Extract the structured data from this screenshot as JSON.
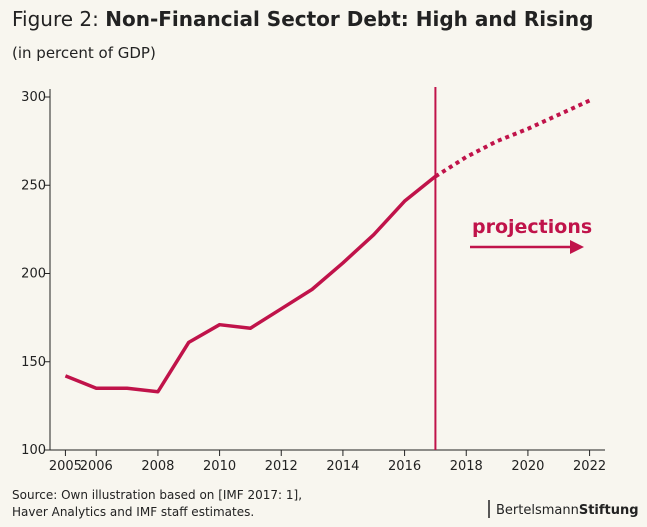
{
  "chart_data": {
    "type": "line",
    "title_prefix": "Figure 2:",
    "title": "Non-Financial Sector Debt: High and Rising",
    "subtitle": "(in percent of GDP)",
    "x": [
      2005,
      2006,
      2007,
      2008,
      2009,
      2010,
      2011,
      2012,
      2013,
      2014,
      2015,
      2016,
      2017,
      2018,
      2019,
      2020,
      2021,
      2022
    ],
    "series": [
      {
        "color": "#c0134a",
        "style": "solid",
        "values": [
          142,
          135,
          135,
          133,
          161,
          171,
          169,
          180,
          191,
          206,
          222,
          241,
          255,
          null,
          null,
          null,
          null,
          null
        ]
      },
      {
        "color": "#c0134a",
        "style": "dotted",
        "values": [
          null,
          null,
          null,
          null,
          null,
          null,
          null,
          null,
          null,
          null,
          null,
          null,
          255,
          266,
          275,
          282,
          290,
          298
        ]
      }
    ],
    "xlim": [
      2004.5,
      2022.5
    ],
    "xticks": [
      2005,
      2006,
      2008,
      2010,
      2012,
      2014,
      2016,
      2018,
      2020,
      2022
    ],
    "ylim": [
      100,
      300
    ],
    "yticks": [
      100,
      150,
      200,
      250,
      300
    ],
    "vline": 2017,
    "vline_color": "#c0134a",
    "annotation": "projections",
    "source": [
      "Source: Own illustration based on [IMF 2017: 1],",
      "Haver Analytics and IMF staff estimates."
    ],
    "logo": [
      "Bertelsmann",
      "Stiftung"
    ]
  }
}
